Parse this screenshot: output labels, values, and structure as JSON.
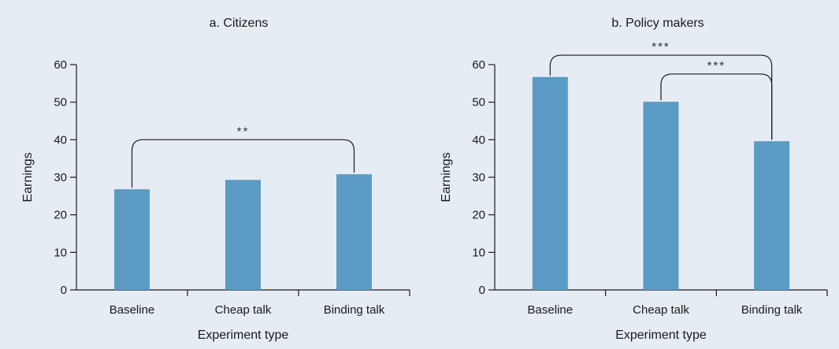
{
  "chart_data": [
    {
      "type": "bar",
      "title": "a. Citizens",
      "xlabel": "Experiment type",
      "ylabel": "Earnings",
      "categories": [
        "Baseline",
        "Cheap talk",
        "Binding talk"
      ],
      "values": [
        26.8,
        29.3,
        30.8
      ],
      "ylim": [
        0,
        60
      ],
      "yticks": [
        0,
        10,
        20,
        30,
        40,
        50,
        60
      ],
      "color": "#5b9bc4",
      "grid": false,
      "annotations": [
        {
          "from": "Baseline",
          "to": "Binding talk",
          "label": "**",
          "y": 40
        }
      ]
    },
    {
      "type": "bar",
      "title": "b. Policy makers",
      "xlabel": "Experiment type",
      "ylabel": "Earnings",
      "categories": [
        "Baseline",
        "Cheap talk",
        "Binding talk"
      ],
      "values": [
        56.7,
        50.1,
        39.6
      ],
      "ylim": [
        0,
        60
      ],
      "yticks": [
        0,
        10,
        20,
        30,
        40,
        50,
        60
      ],
      "color": "#5b9bc4",
      "grid": false,
      "annotations": [
        {
          "from": "Baseline",
          "to": "Binding talk",
          "label": "***",
          "y": 62.5
        },
        {
          "from": "Cheap talk",
          "to": "Binding talk",
          "label": "***",
          "y": 57.5
        }
      ]
    }
  ]
}
